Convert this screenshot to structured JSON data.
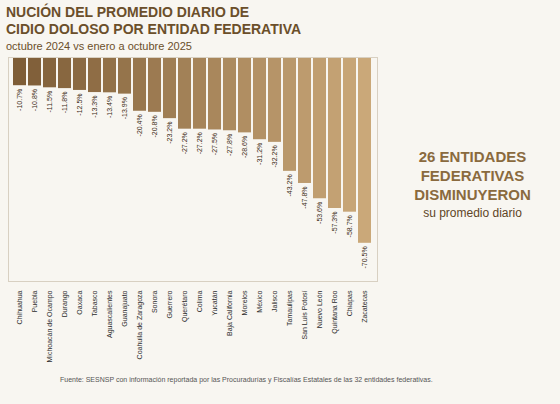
{
  "chart_data": {
    "type": "bar",
    "title": "NUCIÓN DEL PROMEDIO DIARIO DE\nCIDIO DOLOSO POR ENTIDAD FEDERATIVA",
    "subtitle": "octubre 2024 vs enero a octubre 2025",
    "categories": [
      "Chihuahua",
      "Puebla",
      "Michoacán de Ocampo",
      "Durango",
      "Oaxaca",
      "Tabasco",
      "Aguascalientes",
      "Guanajuato",
      "Coahuila de Zaragoza",
      "Sonora",
      "Guerrero",
      "Querétaro",
      "Colima",
      "Yucatán",
      "Baja California",
      "Morelos",
      "México",
      "Jalisco",
      "Tamaulipas",
      "San Luis Potosí",
      "Nuevo León",
      "Quintana Roo",
      "Chiapas",
      "Zacatecas"
    ],
    "values": [
      -10.7,
      -10.8,
      -11.5,
      -11.8,
      -12.5,
      -13.3,
      -13.4,
      -13.9,
      -20.4,
      -20.8,
      -23.2,
      -27.2,
      -27.2,
      -27.5,
      -27.8,
      -28.6,
      -31.2,
      -32.2,
      -43.2,
      -47.8,
      -53.6,
      -57.3,
      -58.7,
      -70.5
    ],
    "value_labels": [
      "-10.7%",
      "-10.8%",
      "-11.5%",
      "-11.8%",
      "-12.5%",
      "-13.3%",
      "-13.4%",
      "-13.9%",
      "-20.4%",
      "-20.8%",
      "-23.2%",
      "-27.2%",
      "-27.2%",
      "-27.5%",
      "-27.8%",
      "-28.6%",
      "-31.2%",
      "-32.2%",
      "-43.2%",
      "-47.8%",
      "-53.6%",
      "-57.3%",
      "-58.7%",
      "-70.5%"
    ],
    "colors": [
      "#7e5d37",
      "#81603a",
      "#85643d",
      "#886740",
      "#8b6a43",
      "#8f6d45",
      "#927148",
      "#95744b",
      "#98774e",
      "#9c7a51",
      "#9f7e54",
      "#a28157",
      "#a68459",
      "#a9875c",
      "#ac8b5f",
      "#b08e62",
      "#b39165",
      "#b69468",
      "#b9986b",
      "#bd9b6e",
      "#c09e70",
      "#c3a173",
      "#c7a576",
      "#caa879"
    ],
    "ylim": [
      -85,
      0
    ],
    "yticks": [],
    "data_labels": true,
    "tick_labels": "x",
    "annotations": [
      "26 ENTIDADES FEDERATIVAS DISMINUYERON",
      "su promedio diario"
    ],
    "source": "Fuente: SESNSP con información reportada por las Procuradurías y Fiscalías Estatales de las 32 entidades federativas."
  }
}
